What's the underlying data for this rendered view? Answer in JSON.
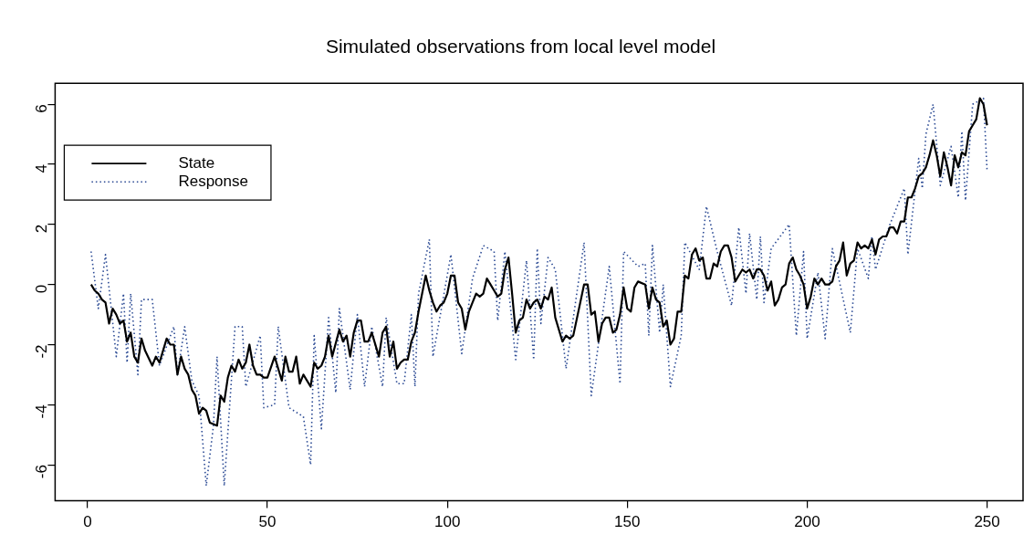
{
  "chart_data": {
    "type": "line",
    "title": "Simulated observations from local level model",
    "xlim": [
      -9,
      260
    ],
    "xticks": [
      0,
      50,
      100,
      150,
      200,
      250
    ],
    "ylim": [
      -7.2,
      6.7
    ],
    "yticks": [
      -6,
      -4,
      -2,
      0,
      2,
      4,
      6
    ],
    "legend": "top left",
    "grid": false,
    "series": [
      {
        "name": "State",
        "color": "#000000",
        "line_style": "solid",
        "x": [
          1,
          2,
          3,
          4,
          5,
          6,
          7,
          8,
          9,
          10,
          11,
          12,
          13,
          14,
          15,
          16,
          18,
          19,
          20,
          22,
          23,
          24,
          25,
          26,
          27,
          28,
          29,
          30,
          31,
          32,
          33,
          34,
          36,
          37,
          38,
          39,
          40,
          41,
          42,
          43,
          44,
          45,
          46,
          47,
          48,
          49,
          50,
          52,
          54,
          55,
          56,
          57,
          58,
          59,
          60,
          62,
          63,
          64,
          65,
          66,
          67,
          68,
          70,
          71,
          72,
          73,
          74,
          75,
          76,
          77,
          78,
          79,
          81,
          82,
          83,
          84,
          85,
          86,
          87,
          88,
          89,
          90,
          91,
          92,
          93,
          94,
          95,
          96,
          97,
          98,
          99,
          100,
          101,
          102,
          103,
          104,
          105,
          106,
          107,
          108,
          109,
          110,
          111,
          112,
          113,
          114,
          115,
          116,
          117,
          118,
          119,
          120,
          121,
          122,
          123,
          124,
          125,
          126,
          127,
          128,
          129,
          130,
          132,
          133,
          134,
          135,
          138,
          139,
          140,
          141,
          142,
          143,
          144,
          145,
          146,
          147,
          148,
          149,
          150,
          151,
          152,
          153,
          155,
          156,
          157,
          158,
          159,
          160,
          161,
          162,
          163,
          164,
          165,
          166,
          167,
          168,
          169,
          170,
          171,
          172,
          173,
          174,
          175,
          176,
          177,
          178,
          179,
          180,
          181,
          182,
          183,
          184,
          185,
          186,
          187,
          188,
          189,
          190,
          191,
          192,
          193,
          194,
          195,
          196,
          197,
          198,
          199,
          200,
          201,
          202,
          203,
          204,
          205,
          206,
          207,
          208,
          209,
          210,
          211,
          212,
          213,
          214,
          215,
          216,
          217,
          218,
          219,
          220,
          221,
          222,
          223,
          224,
          225,
          226,
          227,
          228,
          229,
          230,
          231,
          232,
          233,
          234,
          235,
          236,
          237,
          238,
          239,
          240,
          241,
          242,
          243,
          244,
          245,
          246,
          247,
          248,
          249,
          250
        ],
        "values": [
          0.0,
          -0.2,
          -0.3,
          -0.5,
          -0.6,
          -1.3,
          -0.8,
          -1.0,
          -1.3,
          -1.2,
          -1.9,
          -1.6,
          -2.4,
          -2.6,
          -1.8,
          -2.2,
          -2.7,
          -2.4,
          -2.6,
          -1.8,
          -2.0,
          -2.0,
          -3.0,
          -2.4,
          -2.8,
          -3.0,
          -3.5,
          -3.7,
          -4.3,
          -4.1,
          -4.2,
          -4.6,
          -4.7,
          -3.7,
          -3.9,
          -3.1,
          -2.7,
          -2.9,
          -2.5,
          -2.8,
          -2.6,
          -2.0,
          -2.7,
          -3.0,
          -3.0,
          -3.1,
          -3.1,
          -2.4,
          -3.2,
          -2.4,
          -2.9,
          -2.9,
          -2.4,
          -3.3,
          -3.0,
          -3.4,
          -2.6,
          -2.8,
          -2.7,
          -2.4,
          -1.7,
          -2.4,
          -1.5,
          -1.9,
          -1.7,
          -2.4,
          -1.6,
          -1.2,
          -1.2,
          -1.9,
          -1.9,
          -1.6,
          -2.4,
          -1.6,
          -1.4,
          -2.4,
          -1.9,
          -2.8,
          -2.6,
          -2.5,
          -2.5,
          -1.9,
          -1.6,
          -0.9,
          -0.3,
          0.3,
          -0.2,
          -0.6,
          -0.9,
          -0.7,
          -0.6,
          -0.3,
          0.3,
          0.3,
          -0.6,
          -0.8,
          -1.5,
          -0.9,
          -0.6,
          -0.3,
          -0.4,
          -0.3,
          0.2,
          0.0,
          -0.2,
          -0.4,
          -0.3,
          0.5,
          0.9,
          -0.3,
          -1.6,
          -1.2,
          -1.1,
          -0.5,
          -0.8,
          -0.6,
          -0.5,
          -0.8,
          -0.4,
          -0.5,
          -0.1,
          -1.1,
          -1.9,
          -1.7,
          -1.8,
          -1.7,
          0.0,
          0.0,
          -1.0,
          -0.9,
          -1.9,
          -1.3,
          -1.1,
          -1.1,
          -1.6,
          -1.5,
          -1.0,
          -0.1,
          -0.8,
          -0.9,
          -0.1,
          0.1,
          0.0,
          -0.8,
          -0.1,
          -0.5,
          -0.6,
          -1.4,
          -1.2,
          -2.0,
          -1.8,
          -0.9,
          -0.9,
          0.3,
          0.2,
          1.0,
          1.2,
          0.8,
          0.9,
          0.2,
          0.2,
          0.7,
          0.6,
          1.1,
          1.3,
          1.3,
          0.9,
          0.1,
          0.3,
          0.5,
          0.4,
          0.5,
          0.2,
          0.5,
          0.5,
          0.3,
          -0.2,
          0.1,
          -0.7,
          -0.5,
          -0.1,
          0.0,
          0.7,
          0.9,
          0.5,
          0.3,
          0.0,
          -0.8,
          -0.4,
          0.2,
          0.0,
          0.2,
          0.0,
          0.0,
          0.1,
          0.6,
          0.8,
          1.4,
          0.3,
          0.7,
          0.8,
          1.4,
          1.2,
          1.3,
          1.2,
          1.5,
          1.0,
          1.5,
          1.6,
          1.6,
          1.9,
          1.9,
          1.7,
          2.1,
          2.1,
          2.9,
          2.9,
          3.2,
          3.6,
          3.7,
          3.9,
          4.3,
          4.8,
          4.3,
          3.6,
          4.4,
          3.9,
          3.3,
          4.3,
          3.9,
          4.4,
          4.3,
          5.1,
          5.3,
          5.5,
          6.2,
          6.0,
          5.3
        ]
      },
      {
        "name": "Response",
        "color": "#2b4a94",
        "line_style": "dotted",
        "x": [
          1,
          3,
          5,
          8,
          10,
          11,
          12,
          14,
          15,
          18,
          20,
          24,
          25,
          27,
          29,
          31,
          33,
          35,
          36,
          38,
          41,
          43,
          44,
          48,
          49,
          52,
          53,
          56,
          60,
          62,
          63,
          65,
          67,
          69,
          70,
          73,
          75,
          77,
          79,
          82,
          83,
          86,
          88,
          90,
          91,
          92,
          95,
          96,
          101,
          104,
          107,
          110,
          113,
          114,
          116,
          119,
          122,
          124,
          125,
          126,
          128,
          130,
          133,
          138,
          140,
          145,
          148,
          149,
          153,
          155,
          156,
          157,
          159,
          160,
          162,
          165,
          166,
          170,
          172,
          175,
          179,
          181,
          183,
          184,
          186,
          187,
          188,
          190,
          195,
          197,
          199,
          200,
          203,
          205,
          207,
          212,
          214,
          217,
          218,
          219,
          223,
          227,
          228,
          231,
          232,
          233,
          235,
          237,
          240,
          242,
          243,
          244,
          246,
          249,
          250
        ],
        "values": [
          1.1,
          -0.8,
          1.0,
          -2.4,
          -0.3,
          -2.6,
          -0.3,
          -3.0,
          -0.5,
          -0.5,
          -2.7,
          -1.4,
          -3.0,
          -1.4,
          -3.2,
          -3.7,
          -6.7,
          -4.7,
          -2.4,
          -6.7,
          -1.4,
          -1.4,
          -3.4,
          -1.7,
          -4.1,
          -4.0,
          -1.4,
          -4.1,
          -4.4,
          -6.0,
          -1.7,
          -4.8,
          -1.1,
          -3.6,
          -0.8,
          -3.5,
          -1.0,
          -3.4,
          -1.4,
          -3.4,
          -1.1,
          -3.3,
          -3.3,
          -1.0,
          -3.4,
          -0.3,
          1.5,
          -2.4,
          1.0,
          -2.3,
          0.2,
          1.3,
          1.1,
          -1.2,
          1.1,
          -2.5,
          0.8,
          -2.5,
          1.2,
          -1.3,
          0.9,
          0.5,
          -2.8,
          1.4,
          -3.7,
          0.6,
          -3.3,
          1.1,
          0.6,
          0.7,
          -1.7,
          1.3,
          -1.6,
          0.0,
          -3.4,
          -1.7,
          1.4,
          0.5,
          2.6,
          1.1,
          -0.7,
          1.9,
          -0.3,
          1.7,
          -0.5,
          1.6,
          -0.6,
          1.2,
          2.0,
          -1.7,
          1.1,
          -1.8,
          0.4,
          -1.8,
          1.2,
          -1.6,
          1.2,
          0.2,
          1.6,
          0.5,
          2.0,
          3.2,
          1.0,
          4.2,
          3.2,
          5.0,
          6.0,
          3.3,
          4.6,
          2.9,
          5.1,
          2.8,
          6.0,
          6.2,
          3.8
        ]
      }
    ]
  }
}
